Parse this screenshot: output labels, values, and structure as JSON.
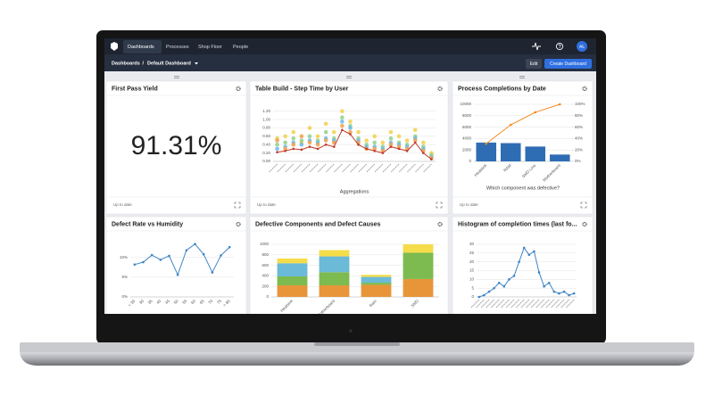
{
  "nav": {
    "items": [
      "Dashboards",
      "Processes",
      "Shop Floor",
      "People"
    ],
    "avatar": "AL"
  },
  "breadcrumb": {
    "root": "Dashboards",
    "separator": "/",
    "current": "Default Dashboard"
  },
  "buttons": {
    "edit": "Edit",
    "create": "Create Dashboard"
  },
  "panels": [
    {
      "title": "First Pass Yield",
      "kpi": "91.31%",
      "footer": "Up to date"
    },
    {
      "title": "Table Build - Step Time by User",
      "footer": "Up to date",
      "chart": {
        "type": "scatter-line",
        "x_label": "Aggregations",
        "grid": true,
        "categories": [
          null,
          null,
          null,
          null,
          null,
          null,
          null,
          null,
          null,
          null,
          null,
          null,
          null,
          null,
          null,
          null,
          null,
          null,
          null,
          null
        ],
        "ylim": [
          0,
          1.3
        ],
        "yticks": [
          {
            "value": 0,
            "label": "0.00"
          },
          {
            "value": 0.2,
            "label": "0.20"
          },
          {
            "value": 0.4,
            "label": "0.40"
          },
          {
            "value": 0.6,
            "label": "0.60"
          },
          {
            "value": 0.8,
            "label": "0.80"
          },
          {
            "value": 1.0,
            "label": "1.00"
          },
          {
            "value": 1.2,
            "label": "1.20"
          }
        ],
        "series": [
          {
            "kind": "markers",
            "color": "#f2d04b",
            "values": [
              0.55,
              0.6,
              0.7,
              0.45,
              0.8,
              0.6,
              0.9,
              0.7,
              1.2,
              0.95,
              0.7,
              0.5,
              0.6,
              0.45,
              0.7,
              0.6,
              0.5,
              0.75,
              0.45,
              0.2
            ]
          },
          {
            "kind": "markers",
            "color": "#8fd18b",
            "values": [
              0.4,
              0.45,
              0.55,
              0.5,
              0.6,
              0.5,
              0.7,
              0.55,
              1.05,
              0.85,
              0.55,
              0.4,
              0.45,
              0.35,
              0.55,
              0.45,
              0.4,
              0.6,
              0.35,
              0.15
            ]
          },
          {
            "kind": "markers",
            "color": "#6cb8e6",
            "values": [
              0.3,
              0.35,
              0.45,
              0.4,
              0.5,
              0.45,
              0.55,
              0.5,
              0.95,
              0.8,
              0.5,
              0.35,
              0.35,
              0.3,
              0.45,
              0.4,
              0.35,
              0.55,
              0.3,
              0.1
            ]
          },
          {
            "kind": "markers",
            "color": "#f0a04b",
            "values": [
              0.5,
              0.3,
              0.4,
              0.6,
              0.45,
              0.4,
              0.5,
              0.45,
              0.85,
              0.7,
              0.45,
              0.3,
              0.3,
              0.25,
              0.4,
              0.35,
              0.3,
              0.5,
              0.25,
              0.08
            ]
          },
          {
            "kind": "line",
            "markers": true,
            "color": "#c0392b",
            "values": [
              0.22,
              0.25,
              0.3,
              0.28,
              0.35,
              0.3,
              0.4,
              0.35,
              0.75,
              0.65,
              0.4,
              0.3,
              0.25,
              0.2,
              0.35,
              0.3,
              0.25,
              0.45,
              0.2,
              0.05
            ]
          }
        ]
      }
    },
    {
      "title": "Process Completions by Date",
      "footer": "Up to date",
      "chart": {
        "type": "bar-line",
        "x_label": "Which component was defective?",
        "grid": true,
        "categories": [
          "Heatsink",
          "RAM",
          "SMD Line",
          "Motherboard"
        ],
        "ylim": [
          0,
          10000
        ],
        "yticks": [
          0,
          2000,
          4000,
          6000,
          8000,
          10000
        ],
        "y2lim": [
          0,
          100
        ],
        "y2ticks": [
          {
            "value": 0,
            "label": "0%"
          },
          {
            "value": 20,
            "label": "20%"
          },
          {
            "value": 40,
            "label": "40%"
          },
          {
            "value": 60,
            "label": "60%"
          },
          {
            "value": 80,
            "label": "80%"
          },
          {
            "value": 100,
            "label": "100%"
          }
        ],
        "series": [
          {
            "kind": "bar",
            "color": "#2e6db4",
            "values": [
              3300,
              3200,
              2600,
              1200
            ]
          },
          {
            "kind": "line",
            "markers": true,
            "axis": "y2",
            "color": "#f28a1e",
            "values": [
              31,
              64,
              86,
              100
            ]
          }
        ]
      }
    },
    {
      "title": "Defect Rate vs Humidity",
      "chart": {
        "type": "line",
        "grid": true,
        "categories": [
          "< 30",
          "30",
          "35",
          "40",
          "45",
          "50",
          "55",
          "60",
          "65",
          "70",
          "75",
          "> 80"
        ],
        "ylim": [
          0,
          14
        ],
        "yticks": [
          {
            "value": 0,
            "label": "0%"
          },
          {
            "value": 5,
            "label": "5%"
          },
          {
            "value": 10,
            "label": "10%"
          }
        ],
        "series": [
          {
            "kind": "line",
            "markers": true,
            "color": "#3d85c6",
            "values": [
              8.2,
              8.8,
              10.6,
              9.4,
              10.4,
              5.6,
              11.8,
              13.4,
              10.8,
              6.2,
              10.5,
              12.6
            ]
          }
        ]
      }
    },
    {
      "title": "Defective Components and Defect Causes",
      "chart": {
        "type": "stacked-bar",
        "grid": true,
        "stacked": true,
        "categories": [
          "Heatsink",
          "Motherboard",
          "Ram",
          "SMD"
        ],
        "ylim": [
          0,
          1000
        ],
        "yticks": [
          0,
          200,
          400,
          600,
          800,
          1000
        ],
        "series": [
          {
            "kind": "bar",
            "color": "#e8953a",
            "values": [
              220,
              220,
              230,
              340
            ]
          },
          {
            "kind": "bar",
            "color": "#7dba4f",
            "values": [
              170,
              250,
              40,
              500
            ]
          },
          {
            "kind": "bar",
            "color": "#6bbad8",
            "values": [
              250,
              300,
              110,
              0
            ]
          },
          {
            "kind": "bar",
            "color": "#f5dc4a",
            "values": [
              90,
              120,
              40,
              160
            ]
          }
        ]
      }
    },
    {
      "title": "Histogram of completion times (last fo...",
      "chart": {
        "type": "line",
        "grid": true,
        "categories": [
          null,
          null,
          null,
          null,
          null,
          null,
          null,
          null,
          null,
          null,
          null,
          null,
          null,
          null,
          null,
          null,
          null,
          null,
          null,
          null
        ],
        "ylim": [
          0,
          30
        ],
        "yticks": [
          0,
          5,
          10,
          15,
          20,
          25,
          30
        ],
        "series": [
          {
            "kind": "line",
            "markers": true,
            "color": "#3d85c6",
            "values": [
              0,
              1,
              3,
              5,
              8,
              6,
              10,
              12,
              20,
              28,
              24,
              26,
              14,
              6,
              8,
              3,
              2,
              3,
              1,
              2
            ]
          }
        ]
      }
    }
  ]
}
